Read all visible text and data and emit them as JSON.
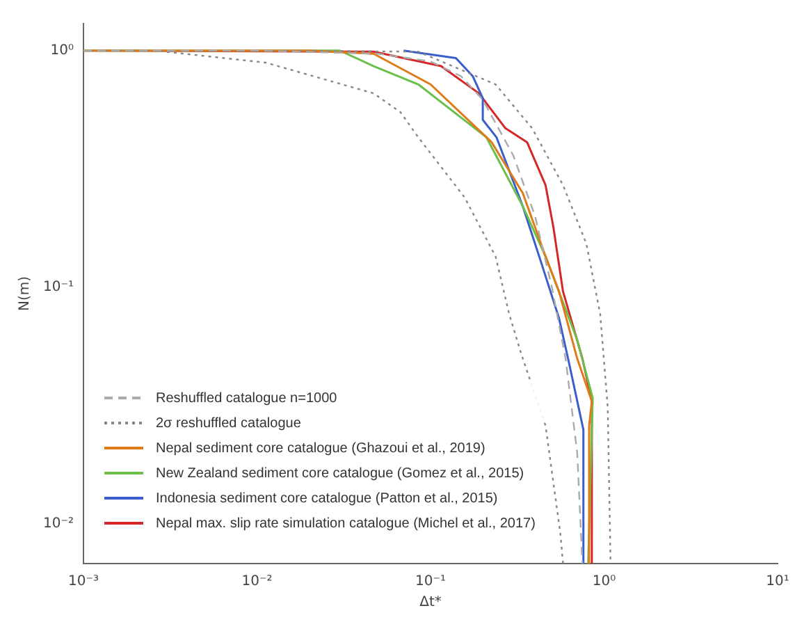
{
  "chart_data": {
    "type": "line",
    "xlabel": "Δt*",
    "ylabel": "N(m)",
    "log": "xy",
    "grid": false,
    "legend": "bottom left",
    "marker": "none",
    "xlim": [
      0.001,
      10
    ],
    "xticks": [
      {
        "value": 0.001,
        "label": "10⁻³"
      },
      {
        "value": 0.01,
        "label": "10⁻²"
      },
      {
        "value": 0.1,
        "label": "10⁻¹"
      },
      {
        "value": 1,
        "label": "10⁰"
      },
      {
        "value": 10,
        "label": "10¹"
      }
    ],
    "ylim": [
      0.0068,
      1.3
    ],
    "yticks": [
      {
        "value": 0.01,
        "label": "10⁻²"
      },
      {
        "value": 0.1,
        "label": "10⁻¹"
      },
      {
        "value": 1,
        "label": "10⁰"
      }
    ],
    "series": [
      {
        "name": "Reshuffled catalogue n=1000",
        "color": "#aaaaaa",
        "line_style": "dashed",
        "x": [
          0.001,
          0.01,
          0.05,
          0.1,
          0.15,
          0.2,
          0.3,
          0.4,
          0.5,
          0.6,
          0.7,
          0.75
        ],
        "values": [
          1,
          1,
          0.97,
          0.9,
          0.78,
          0.62,
          0.36,
          0.2,
          0.1,
          0.05,
          0.02,
          0.0068
        ]
      },
      {
        "name": "2σ reshuffled catalogue",
        "color": "#888888",
        "line_style": "dotted",
        "x": [
          0.001,
          0.0026,
          0.0112,
          0.047,
          0.067,
          0.085,
          0.157,
          0.237,
          0.284,
          0.334,
          0.46,
          0.56,
          0.58
        ],
        "values": [
          1,
          1,
          0.89,
          0.66,
          0.55,
          0.43,
          0.24,
          0.135,
          0.077,
          0.052,
          0.026,
          0.0091,
          0.0068
        ]
      },
      {
        "color": "#888888",
        "line_style": "dotted",
        "x": [
          0.011,
          0.085,
          0.237,
          0.385,
          0.58,
          0.79,
          0.95,
          1.05,
          1.09
        ],
        "values": [
          1,
          0.99,
          0.72,
          0.47,
          0.27,
          0.153,
          0.077,
          0.031,
          0.0068
        ]
      },
      {
        "name": "Nepal sediment core catalogue (Ghazoui et al., 2019)",
        "color": "#e07b1a",
        "line_style": "solid",
        "x": [
          0.001,
          0.02,
          0.047,
          0.1,
          0.225,
          0.34,
          0.46,
          0.55,
          0.7,
          0.85,
          0.82,
          0.82
        ],
        "values": [
          1,
          1,
          0.97,
          0.72,
          0.41,
          0.25,
          0.135,
          0.096,
          0.05,
          0.033,
          0.026,
          0.0068
        ]
      },
      {
        "name": "New Zealand sediment core catalogue (Gomez et al., 2015)",
        "color": "#6cbf4a",
        "line_style": "solid",
        "x": [
          0.001,
          0.03,
          0.047,
          0.085,
          0.21,
          0.34,
          0.46,
          0.7,
          0.86,
          0.81
        ],
        "values": [
          1,
          1,
          0.86,
          0.72,
          0.43,
          0.22,
          0.135,
          0.06,
          0.034,
          0.0068
        ]
      },
      {
        "name": "Indonesia sediment core catalogue (Patton et al., 2015)",
        "color": "#3a5fcd",
        "line_style": "solid",
        "x": [
          0.07,
          0.14,
          0.175,
          0.2,
          0.2,
          0.24,
          0.34,
          0.43,
          0.55,
          0.62,
          0.76,
          0.76
        ],
        "values": [
          1,
          0.93,
          0.78,
          0.63,
          0.51,
          0.43,
          0.22,
          0.13,
          0.074,
          0.05,
          0.025,
          0.0068
        ]
      },
      {
        "name": "Nepal max. slip rate simulation catalogue (Michel et al., 2017)",
        "color": "#d62728",
        "line_style": "solid",
        "x": [
          0.001,
          0.047,
          0.115,
          0.19,
          0.27,
          0.36,
          0.46,
          0.51,
          0.58,
          0.75,
          0.85,
          0.85
        ],
        "values": [
          1,
          0.99,
          0.86,
          0.66,
          0.47,
          0.41,
          0.27,
          0.18,
          0.096,
          0.05,
          0.033,
          0.0068
        ]
      }
    ]
  }
}
